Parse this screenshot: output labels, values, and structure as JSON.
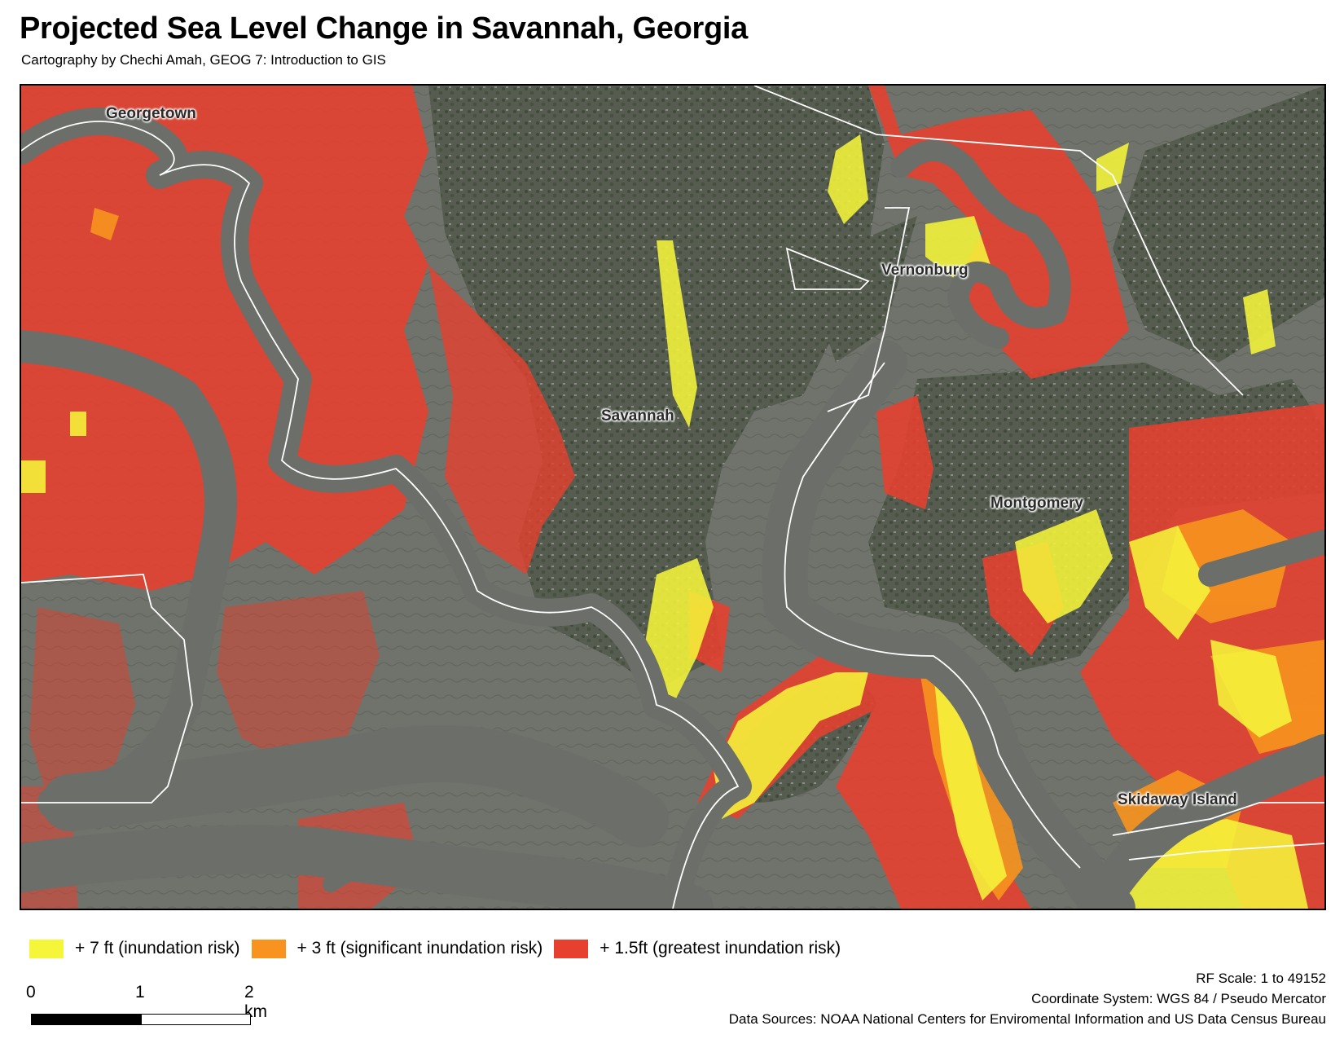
{
  "map": {
    "title": "Projected Sea Level Change in Savannah, Georgia",
    "subtitle": "Cartography by Chechi Amah,  GEOG 7: Introduction to GIS",
    "places": [
      {
        "name": "Georgetown"
      },
      {
        "name": "Savannah"
      },
      {
        "name": "Vernonburg"
      },
      {
        "name": "Montgomery"
      },
      {
        "name": "Skidaway Island"
      }
    ],
    "colors": {
      "water": "#6b6e69",
      "marsh": "#73756d",
      "forest": "#4e5547",
      "urban": "#5c6156",
      "rise_1_5ft": "#e8402e",
      "rise_3ft": "#f7931e",
      "rise_7ft": "#f5f53a",
      "boundary": "#ffffff"
    }
  },
  "legend": [
    {
      "label": "+ 7 ft (inundation risk)",
      "color": "#f5f53a"
    },
    {
      "label": "+ 3 ft (significant inundation risk)",
      "color": "#f7931e"
    },
    {
      "label": "+ 1.5ft (greatest inundation risk)",
      "color": "#e8402e"
    }
  ],
  "scale_bar": {
    "ticks": [
      "0",
      "1",
      "2 km"
    ]
  },
  "info": {
    "rf_scale": "RF Scale: 1 to 49152",
    "coordinate_system": "Coordinate System: WGS 84 / Pseudo Mercator",
    "data_sources": "Data Sources: NOAA National Centers for Enviromental Information and US Data Census Bureau"
  }
}
